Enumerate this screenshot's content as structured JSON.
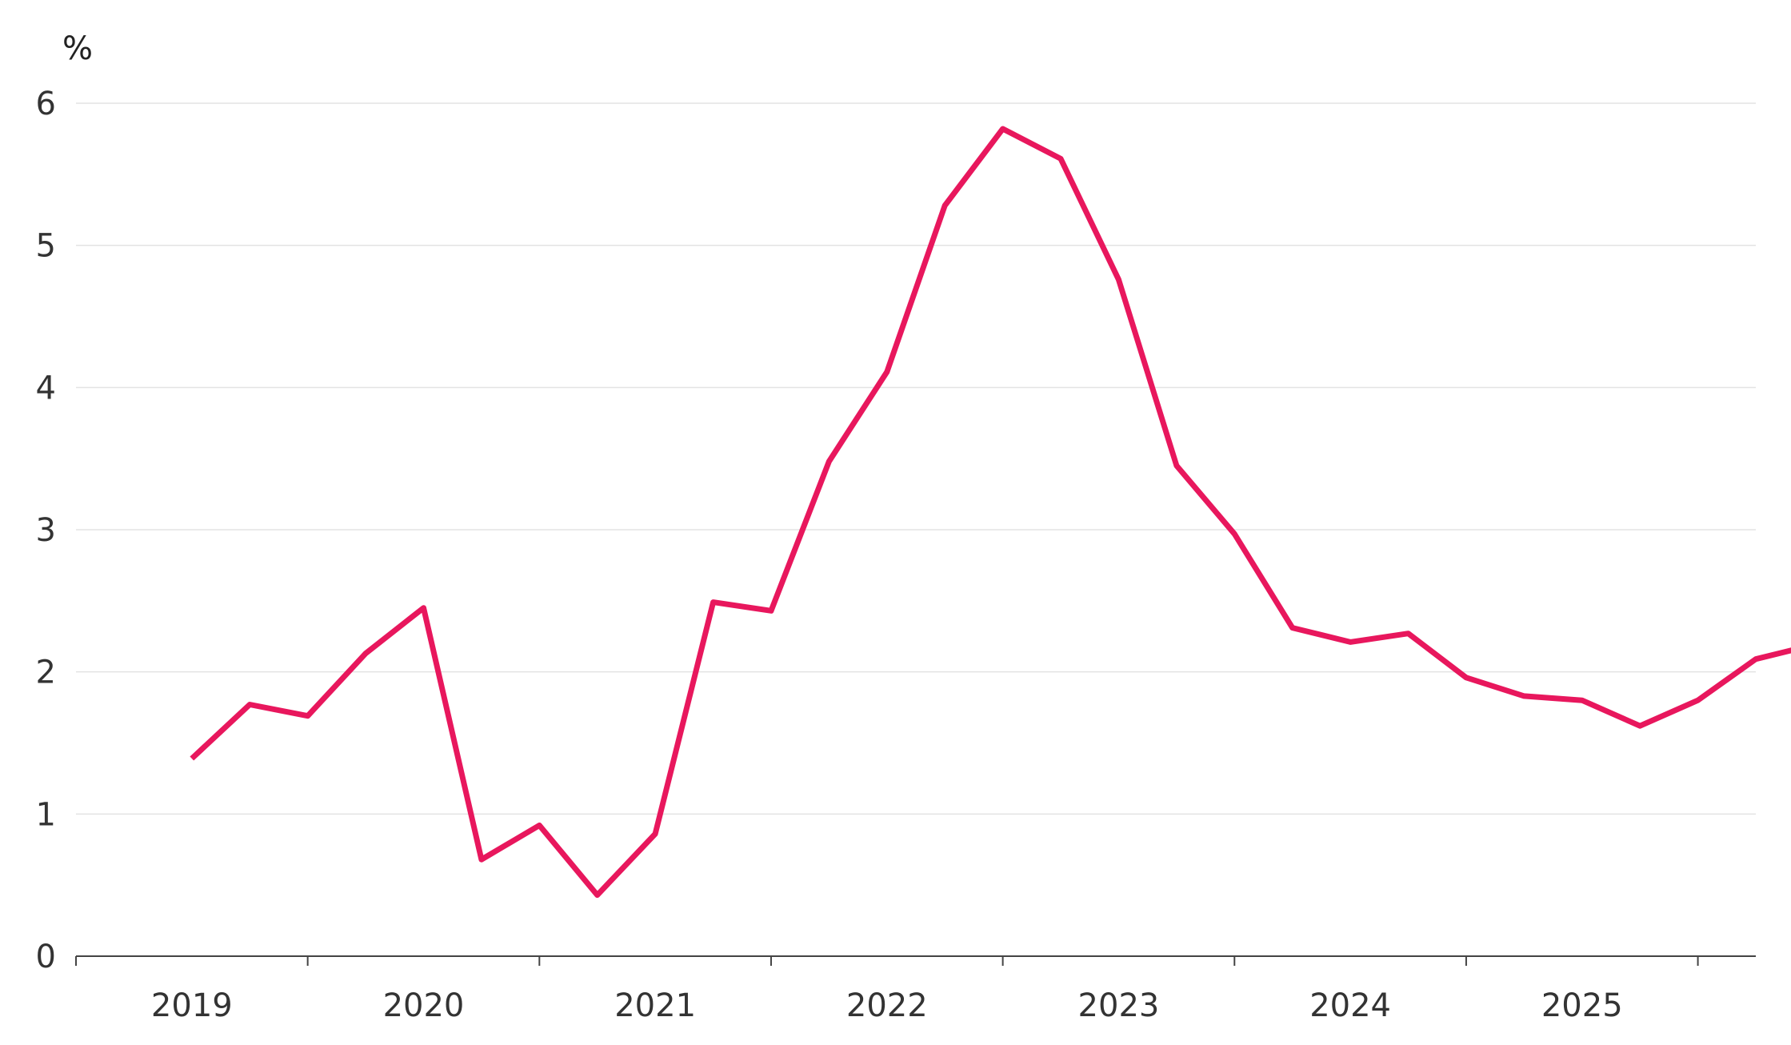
{
  "chart_data": {
    "type": "line",
    "ylabel": "%",
    "ylim": [
      0,
      6
    ],
    "yticks": [
      "0",
      "1",
      "2",
      "3",
      "4",
      "5",
      "6"
    ],
    "xlim": [
      2018.5,
      2025.75
    ],
    "year_labels": [
      "2019",
      "2020",
      "2021",
      "2022",
      "2023",
      "2024",
      "2025"
    ],
    "grid": true,
    "legend": "none",
    "series": [
      {
        "color": "#e8175d",
        "x": [
          "2019-Q1",
          "2019-Q2",
          "2019-Q3",
          "2019-Q4",
          "2020-Q1",
          "2020-Q2",
          "2020-Q3",
          "2020-Q4",
          "2021-Q1",
          "2021-Q2",
          "2021-Q3",
          "2021-Q4",
          "2022-Q1",
          "2022-Q2",
          "2022-Q3",
          "2022-Q4",
          "2023-Q1",
          "2023-Q2",
          "2023-Q3",
          "2023-Q4",
          "2024-Q1",
          "2024-Q2",
          "2024-Q3",
          "2024-Q4",
          "2025-Q1",
          "2025-Q2",
          "2025-Q3",
          "2025-Q4",
          "2026-Q1"
        ],
        "values": [
          1.39,
          1.77,
          1.69,
          2.13,
          2.45,
          0.68,
          0.92,
          0.43,
          0.86,
          2.49,
          2.43,
          3.48,
          4.11,
          5.28,
          5.82,
          5.61,
          4.76,
          3.45,
          2.97,
          2.31,
          2.21,
          2.27,
          1.96,
          1.83,
          1.8,
          1.62,
          1.8,
          2.09,
          2.19
        ]
      }
    ]
  }
}
